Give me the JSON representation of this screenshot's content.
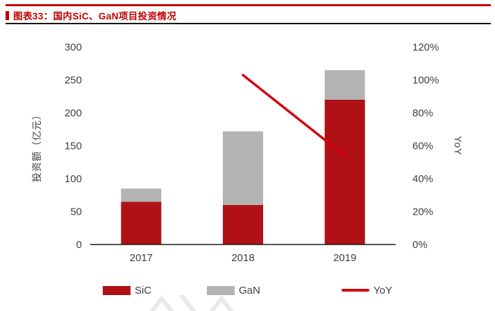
{
  "header": {
    "title": "图表33：国内SiC、GaN项目投资情况"
  },
  "chart_data": {
    "type": "bar",
    "subtype": "stacked-bar-with-line",
    "categories": [
      "2017",
      "2018",
      "2019"
    ],
    "series": [
      {
        "name": "SiC",
        "type": "bar",
        "stack": true,
        "axis": "left",
        "color": "#B01116",
        "values": [
          65,
          60,
          220
        ]
      },
      {
        "name": "GaN",
        "type": "bar",
        "stack": true,
        "axis": "left",
        "color": "#B3B3B3",
        "values": [
          20,
          112,
          45
        ]
      },
      {
        "name": "YoY",
        "type": "line",
        "axis": "right",
        "color": "#D7000F",
        "values": [
          null,
          103,
          54
        ]
      }
    ],
    "stacked_totals": [
      85,
      172,
      265
    ],
    "left_axis": {
      "label": "投资额（亿元）",
      "min": 0,
      "max": 300,
      "step": 50,
      "ticks": [
        "0",
        "50",
        "100",
        "150",
        "200",
        "250",
        "300"
      ]
    },
    "right_axis": {
      "label": "YoY",
      "min": 0,
      "max": 120,
      "step": 20,
      "ticks": [
        "0%",
        "20%",
        "40%",
        "60%",
        "80%",
        "100%",
        "120%"
      ]
    },
    "legend": [
      {
        "label": "SiC",
        "marker": "rect",
        "color": "#B01116"
      },
      {
        "label": "GaN",
        "marker": "rect",
        "color": "#B3B3B3"
      },
      {
        "label": "YoY",
        "marker": "line",
        "color": "#D7000F"
      }
    ],
    "grid": false,
    "legend_position": "bottom"
  },
  "colors": {
    "accent_red": "#C00000",
    "divider_black": "#111111",
    "axis_text": "#3f3f3f",
    "watermark_gray": "#d8d8d8"
  }
}
